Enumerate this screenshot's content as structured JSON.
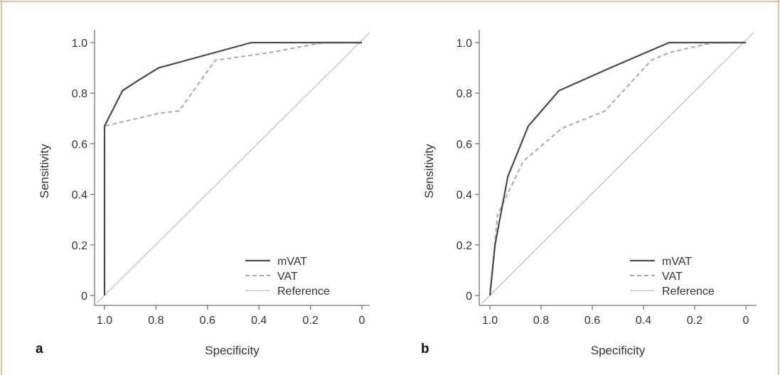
{
  "colors": {
    "mVAT": "#4a4a4a",
    "VAT": "#b0b0b0",
    "Reference": "#cccccc",
    "frame": "#e9bfa2"
  },
  "chart_data": [
    {
      "type": "line",
      "panel_label": "a",
      "xlabel": "Specificity",
      "ylabel": "Sensitivity",
      "x_reversed": true,
      "xlim": [
        1.0,
        0
      ],
      "ylim": [
        0,
        1.0
      ],
      "xticks": [
        1.0,
        0.8,
        0.6,
        0.4,
        0.2,
        0
      ],
      "xtick_labels": [
        "1.0",
        "0.8",
        "0.6",
        "0.4",
        "0.2",
        "0"
      ],
      "yticks": [
        0,
        0.2,
        0.4,
        0.6,
        0.8,
        1.0
      ],
      "ytick_labels": [
        "0",
        "0.2",
        "0.4",
        "0.6",
        "0.8",
        "1.0"
      ],
      "grid": false,
      "legend": "bottom-right",
      "series": [
        {
          "name": "mVAT",
          "style": "solid",
          "points": [
            [
              1.0,
              0.0
            ],
            [
              1.0,
              0.67
            ],
            [
              0.93,
              0.81
            ],
            [
              0.87,
              0.85
            ],
            [
              0.79,
              0.9
            ],
            [
              0.43,
              1.0
            ],
            [
              0.15,
              1.0
            ],
            [
              0.0,
              1.0
            ]
          ]
        },
        {
          "name": "VAT",
          "style": "dashed",
          "points": [
            [
              1.0,
              0.0
            ],
            [
              1.0,
              0.67
            ],
            [
              0.79,
              0.72
            ],
            [
              0.71,
              0.73
            ],
            [
              0.57,
              0.93
            ],
            [
              0.36,
              0.96
            ],
            [
              0.15,
              1.0
            ],
            [
              0.0,
              1.0
            ]
          ]
        },
        {
          "name": "Reference",
          "style": "solid-light",
          "points": [
            [
              1.03,
              -0.03
            ],
            [
              -0.03,
              1.04
            ]
          ]
        }
      ]
    },
    {
      "type": "line",
      "panel_label": "b",
      "xlabel": "Specificity",
      "ylabel": "Sensitivity",
      "x_reversed": true,
      "xlim": [
        1.0,
        0
      ],
      "ylim": [
        0,
        1.0
      ],
      "xticks": [
        1.0,
        0.8,
        0.6,
        0.4,
        0.2,
        0
      ],
      "xtick_labels": [
        "1.0",
        "0.8",
        "0.6",
        "0.4",
        "0.2",
        "0"
      ],
      "yticks": [
        0,
        0.2,
        0.4,
        0.6,
        0.8,
        1.0
      ],
      "ytick_labels": [
        "0",
        "0.2",
        "0.4",
        "0.6",
        "0.8",
        "1.0"
      ],
      "grid": false,
      "legend": "bottom-right",
      "series": [
        {
          "name": "mVAT",
          "style": "solid",
          "points": [
            [
              1.0,
              0.0
            ],
            [
              0.98,
              0.2
            ],
            [
              0.93,
              0.47
            ],
            [
              0.85,
              0.67
            ],
            [
              0.73,
              0.81
            ],
            [
              0.53,
              0.9
            ],
            [
              0.3,
              1.0
            ],
            [
              0.0,
              1.0
            ]
          ]
        },
        {
          "name": "VAT",
          "style": "dashed",
          "points": [
            [
              1.0,
              0.0
            ],
            [
              0.97,
              0.32
            ],
            [
              0.87,
              0.53
            ],
            [
              0.72,
              0.66
            ],
            [
              0.55,
              0.73
            ],
            [
              0.37,
              0.93
            ],
            [
              0.3,
              0.96
            ],
            [
              0.13,
              1.0
            ],
            [
              0.0,
              1.0
            ]
          ]
        },
        {
          "name": "Reference",
          "style": "solid-light",
          "points": [
            [
              1.03,
              -0.03
            ],
            [
              -0.03,
              1.04
            ]
          ]
        }
      ]
    }
  ]
}
